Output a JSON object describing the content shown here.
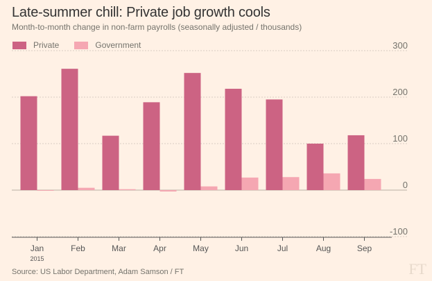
{
  "chart_data": {
    "type": "bar",
    "title": "Late-summer chill: Private job growth cools",
    "subtitle": "Month-to-month change in non-farm payrolls (seasonally adjusted / thousands)",
    "categories": [
      "Jan",
      "Feb",
      "Mar",
      "Apr",
      "May",
      "Jun",
      "Jul",
      "Aug",
      "Sep"
    ],
    "year_label": "2015",
    "series": [
      {
        "name": "Private",
        "color": "#cc6383",
        "values": [
          202,
          261,
          117,
          189,
          252,
          218,
          195,
          100,
          118
        ]
      },
      {
        "name": "Government",
        "color": "#f5a7b2",
        "values": [
          -1,
          5,
          2,
          -3,
          8,
          27,
          28,
          36,
          24
        ]
      }
    ],
    "ylim": [
      -100,
      300
    ],
    "yticks": [
      -100,
      0,
      100,
      200,
      300
    ],
    "ytick_labels": [
      "-100",
      "0",
      "100",
      "200",
      "300"
    ],
    "grid": true,
    "legend": "top-left",
    "source": "Source: US Labor Department, Adam Samson / FT",
    "logo_text": "FT"
  },
  "colors": {
    "background": "#fff1e5",
    "grid": "#d8cdc3",
    "axis": "#555555",
    "text": "#74736c"
  }
}
